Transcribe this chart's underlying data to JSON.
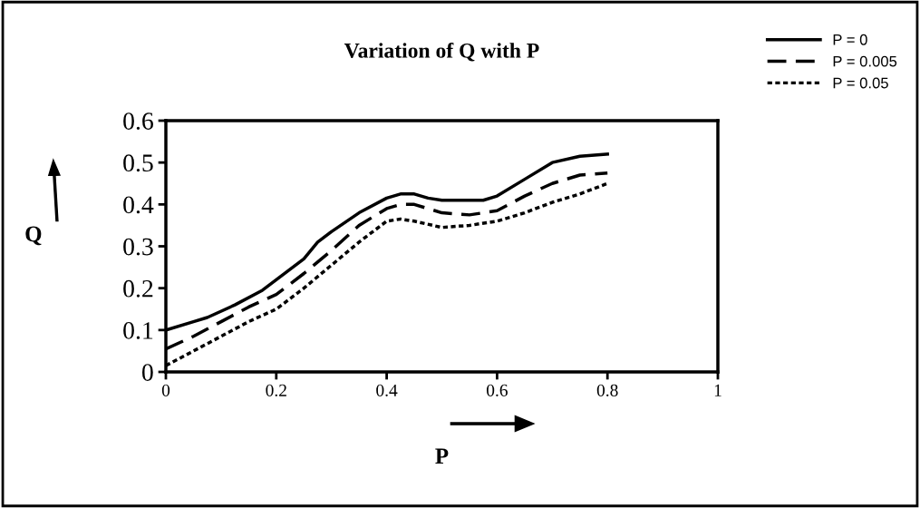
{
  "chart_data": {
    "type": "line",
    "title": "Variation of Q with P",
    "xlabel": "P",
    "ylabel": "Q",
    "xlim": [
      0,
      1
    ],
    "xticks": [
      0,
      0.2,
      0.4,
      0.6,
      0.8,
      1
    ],
    "ylim": [
      0,
      0.6
    ],
    "yticks": [
      0,
      0.1,
      0.2,
      0.3,
      0.4,
      0.5,
      0.6
    ],
    "legend": "top right",
    "grid": false,
    "series": [
      {
        "name": "P = 0",
        "color": "#000000",
        "line_style": "solid",
        "x": [
          0,
          0.05,
          0.075,
          0.125,
          0.175,
          0.2,
          0.25,
          0.275,
          0.3,
          0.35,
          0.4,
          0.425,
          0.45,
          0.475,
          0.5,
          0.575,
          0.6,
          0.65,
          0.7,
          0.75,
          0.8
        ],
        "values": [
          0.1,
          0.12,
          0.13,
          0.16,
          0.195,
          0.22,
          0.27,
          0.31,
          0.335,
          0.38,
          0.415,
          0.425,
          0.425,
          0.415,
          0.41,
          0.41,
          0.42,
          0.46,
          0.5,
          0.515,
          0.52
        ]
      },
      {
        "name": "P = 0.005",
        "color": "#000000",
        "line_style": "dashed",
        "x": [
          0,
          0.05,
          0.1,
          0.15,
          0.2,
          0.25,
          0.3,
          0.35,
          0.4,
          0.425,
          0.45,
          0.5,
          0.55,
          0.6,
          0.65,
          0.7,
          0.75,
          0.8
        ],
        "values": [
          0.055,
          0.085,
          0.12,
          0.155,
          0.185,
          0.235,
          0.29,
          0.35,
          0.39,
          0.4,
          0.4,
          0.38,
          0.375,
          0.385,
          0.42,
          0.45,
          0.47,
          0.475
        ]
      },
      {
        "name": "P = 0.05",
        "color": "#000000",
        "line_style": "dotted",
        "x": [
          0,
          0.05,
          0.1,
          0.15,
          0.2,
          0.25,
          0.3,
          0.35,
          0.4,
          0.425,
          0.45,
          0.5,
          0.55,
          0.6,
          0.65,
          0.7,
          0.75,
          0.8
        ],
        "values": [
          0.015,
          0.05,
          0.085,
          0.12,
          0.15,
          0.2,
          0.255,
          0.31,
          0.36,
          0.365,
          0.36,
          0.345,
          0.35,
          0.36,
          0.38,
          0.405,
          0.425,
          0.45
        ]
      }
    ]
  }
}
